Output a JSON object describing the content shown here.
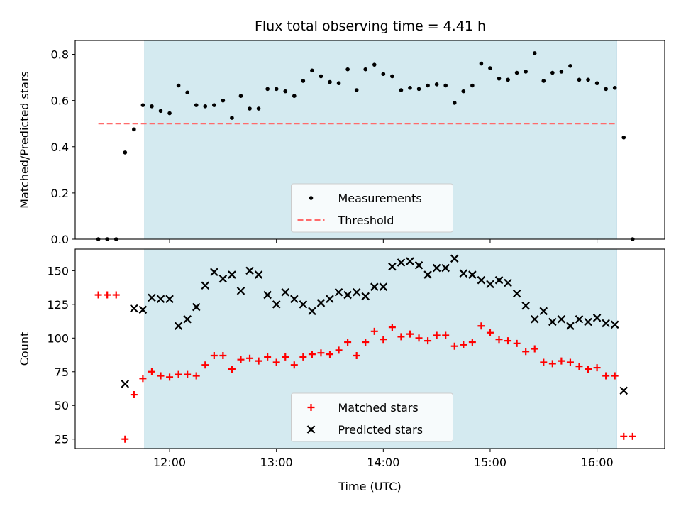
{
  "chart_data": [
    {
      "type": "scatter",
      "title": "Flux total observing time = 4.41 h",
      "xlabel": "",
      "ylabel": "Matched/Predicted stars",
      "xlim": [
        "11:07",
        "16:38"
      ],
      "ylim": [
        0,
        0.86
      ],
      "yticks": [
        0.0,
        0.2,
        0.4,
        0.6,
        0.8
      ],
      "ytick_labels": [
        "0.0",
        "0.2",
        "0.4",
        "0.6",
        "0.8"
      ],
      "xticks": [
        "12:00",
        "13:00",
        "14:00",
        "15:00",
        "16:00"
      ],
      "shaded_span": [
        "11:46",
        "16:11"
      ],
      "shaded_color": "#d4eaf0",
      "threshold": {
        "y": 0.5,
        "x_range": [
          "11:20",
          "16:11"
        ],
        "color": "#ff6b6b"
      },
      "legend": {
        "position": "lower center",
        "entries": [
          {
            "label": "Measurements",
            "marker": "dot",
            "color": "#000000"
          },
          {
            "label": "Threshold",
            "marker": "dashed-line",
            "color": "#ff6b6b"
          }
        ]
      },
      "series": [
        {
          "name": "Measurements",
          "marker": "dot",
          "color": "#000000",
          "x": [
            "11:20",
            "11:25",
            "11:30",
            "11:35",
            "11:40",
            "11:45",
            "11:50",
            "11:55",
            "12:00",
            "12:05",
            "12:10",
            "12:15",
            "12:20",
            "12:25",
            "12:30",
            "12:35",
            "12:40",
            "12:45",
            "12:50",
            "12:55",
            "13:00",
            "13:05",
            "13:10",
            "13:15",
            "13:20",
            "13:25",
            "13:30",
            "13:35",
            "13:40",
            "13:45",
            "13:50",
            "13:55",
            "14:00",
            "14:05",
            "14:10",
            "14:15",
            "14:20",
            "14:25",
            "14:30",
            "14:35",
            "14:40",
            "14:45",
            "14:50",
            "14:55",
            "15:00",
            "15:05",
            "15:10",
            "15:15",
            "15:20",
            "15:25",
            "15:30",
            "15:35",
            "15:40",
            "15:45",
            "15:50",
            "15:55",
            "16:00",
            "16:05",
            "16:10",
            "16:15",
            "16:20"
          ],
          "y": [
            0.0,
            0.0,
            0.0,
            0.375,
            0.475,
            0.58,
            0.575,
            0.555,
            0.545,
            0.665,
            0.635,
            0.58,
            0.575,
            0.58,
            0.6,
            0.525,
            0.62,
            0.565,
            0.565,
            0.65,
            0.65,
            0.64,
            0.62,
            0.685,
            0.73,
            0.705,
            0.68,
            0.675,
            0.735,
            0.645,
            0.735,
            0.755,
            0.715,
            0.705,
            0.645,
            0.655,
            0.65,
            0.665,
            0.67,
            0.665,
            0.59,
            0.64,
            0.665,
            0.76,
            0.74,
            0.695,
            0.69,
            0.72,
            0.725,
            0.805,
            0.685,
            0.72,
            0.725,
            0.75,
            0.69,
            0.69,
            0.675,
            0.65,
            0.655,
            0.44,
            0.0
          ]
        }
      ]
    },
    {
      "type": "scatter",
      "title": "",
      "xlabel": "Time (UTC)",
      "ylabel": "Count",
      "xlim": [
        "11:07",
        "16:38"
      ],
      "ylim": [
        18,
        166
      ],
      "yticks": [
        25,
        50,
        75,
        100,
        125,
        150
      ],
      "ytick_labels": [
        "25",
        "50",
        "75",
        "100",
        "125",
        "150"
      ],
      "xticks": [
        "12:00",
        "13:00",
        "14:00",
        "15:00",
        "16:00"
      ],
      "xtick_labels": [
        "12:00",
        "13:00",
        "14:00",
        "15:00",
        "16:00"
      ],
      "shaded_span": [
        "11:46",
        "16:11"
      ],
      "shaded_color": "#d4eaf0",
      "legend": {
        "position": "lower center",
        "entries": [
          {
            "label": "Matched stars",
            "marker": "plus",
            "color": "#ff0000"
          },
          {
            "label": "Predicted stars",
            "marker": "x",
            "color": "#000000"
          }
        ]
      },
      "series": [
        {
          "name": "Matched stars",
          "marker": "plus",
          "color": "#ff0000",
          "x": [
            "11:20",
            "11:25",
            "11:30",
            "11:35",
            "11:40",
            "11:45",
            "11:50",
            "11:55",
            "12:00",
            "12:05",
            "12:10",
            "12:15",
            "12:20",
            "12:25",
            "12:30",
            "12:35",
            "12:40",
            "12:45",
            "12:50",
            "12:55",
            "13:00",
            "13:05",
            "13:10",
            "13:15",
            "13:20",
            "13:25",
            "13:30",
            "13:35",
            "13:40",
            "13:45",
            "13:50",
            "13:55",
            "14:00",
            "14:05",
            "14:10",
            "14:15",
            "14:20",
            "14:25",
            "14:30",
            "14:35",
            "14:40",
            "14:45",
            "14:50",
            "14:55",
            "15:00",
            "15:05",
            "15:10",
            "15:15",
            "15:20",
            "15:25",
            "15:30",
            "15:35",
            "15:40",
            "15:45",
            "15:50",
            "15:55",
            "16:00",
            "16:05",
            "16:10",
            "16:15",
            "16:20"
          ],
          "y": [
            132,
            132,
            132,
            25,
            58,
            70,
            75,
            72,
            71,
            73,
            73,
            72,
            80,
            87,
            87,
            77,
            84,
            85,
            83,
            86,
            82,
            86,
            80,
            86,
            88,
            89,
            88,
            91,
            97,
            87,
            97,
            105,
            99,
            108,
            101,
            103,
            100,
            98,
            102,
            102,
            94,
            95,
            97,
            109,
            104,
            99,
            98,
            96,
            90,
            92,
            82,
            81,
            83,
            82,
            79,
            77,
            78,
            72,
            72,
            27,
            27
          ]
        },
        {
          "name": "Predicted stars",
          "marker": "x",
          "color": "#000000",
          "x": [
            "11:35",
            "11:40",
            "11:45",
            "11:50",
            "11:55",
            "12:00",
            "12:05",
            "12:10",
            "12:15",
            "12:20",
            "12:25",
            "12:30",
            "12:35",
            "12:40",
            "12:45",
            "12:50",
            "12:55",
            "13:00",
            "13:05",
            "13:10",
            "13:15",
            "13:20",
            "13:25",
            "13:30",
            "13:35",
            "13:40",
            "13:45",
            "13:50",
            "13:55",
            "14:00",
            "14:05",
            "14:10",
            "14:15",
            "14:20",
            "14:25",
            "14:30",
            "14:35",
            "14:40",
            "14:45",
            "14:50",
            "14:55",
            "15:00",
            "15:05",
            "15:10",
            "15:15",
            "15:20",
            "15:25",
            "15:30",
            "15:35",
            "15:40",
            "15:45",
            "15:50",
            "15:55",
            "16:00",
            "16:05",
            "16:10",
            "16:15"
          ],
          "y": [
            66,
            122,
            121,
            130,
            129,
            129,
            109,
            114,
            123,
            139,
            149,
            144,
            147,
            135,
            150,
            147,
            132,
            125,
            134,
            129,
            125,
            120,
            126,
            129,
            134,
            132,
            134,
            131,
            138,
            138,
            153,
            156,
            157,
            154,
            147,
            152,
            152,
            159,
            148,
            147,
            143,
            140,
            143,
            141,
            133,
            124,
            114,
            120,
            112,
            114,
            109,
            114,
            112,
            115,
            111,
            110,
            61
          ]
        }
      ]
    }
  ]
}
